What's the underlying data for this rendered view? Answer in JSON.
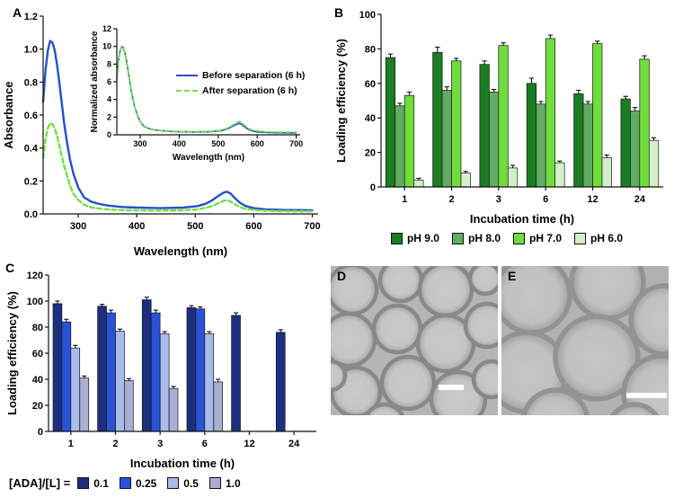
{
  "panels": {
    "a": {
      "label": "A"
    },
    "b": {
      "label": "B"
    },
    "c": {
      "label": "C",
      "legend_prefix": "[ADA]/[L] ="
    },
    "d": {
      "label": "D"
    },
    "e": {
      "label": "E"
    }
  },
  "chart_data": [
    {
      "id": "absorbance-spectra",
      "type": "line",
      "xlabel": "Wavelength (nm)",
      "ylabel": "Absorbance",
      "xlim": [
        240,
        710
      ],
      "ylim": [
        0,
        1.2
      ],
      "xticks": [
        300,
        400,
        500,
        600,
        700
      ],
      "yticks": [
        0,
        0.2,
        0.4,
        0.6,
        0.8,
        1.0,
        1.2
      ],
      "ytick_labels": [
        "0.0",
        "0.2",
        "0.4",
        "0.6",
        "0.8",
        "1.0",
        "1.2"
      ],
      "x": [
        240,
        244,
        248,
        252,
        256,
        260,
        264,
        268,
        272,
        276,
        281,
        286,
        292,
        300,
        310,
        322,
        336,
        352,
        375,
        400,
        440,
        480,
        505,
        520,
        530,
        540,
        548,
        554,
        560,
        568,
        576,
        586,
        600,
        620,
        650,
        700
      ],
      "series": [
        {
          "name": "Before separation (6 h)",
          "color": "#2351c9",
          "style": "solid",
          "y": [
            0.68,
            0.87,
            0.99,
            1.05,
            1.04,
            0.99,
            0.9,
            0.79,
            0.67,
            0.55,
            0.43,
            0.33,
            0.24,
            0.16,
            0.1,
            0.075,
            0.06,
            0.05,
            0.042,
            0.038,
            0.035,
            0.038,
            0.048,
            0.065,
            0.085,
            0.11,
            0.128,
            0.135,
            0.125,
            0.095,
            0.068,
            0.048,
            0.035,
            0.028,
            0.024,
            0.022
          ]
        },
        {
          "name": "After separation (6 h)",
          "color": "#76de4d",
          "style": "dashed",
          "y": [
            0.34,
            0.45,
            0.52,
            0.55,
            0.545,
            0.52,
            0.47,
            0.41,
            0.35,
            0.29,
            0.23,
            0.17,
            0.12,
            0.085,
            0.055,
            0.04,
            0.032,
            0.027,
            0.023,
            0.021,
            0.02,
            0.022,
            0.028,
            0.038,
            0.05,
            0.065,
            0.078,
            0.083,
            0.076,
            0.058,
            0.042,
            0.03,
            0.024,
            0.019,
            0.017,
            0.016
          ]
        }
      ]
    },
    {
      "id": "normalized-spectra-inset",
      "type": "line",
      "xlabel": "Wavelength (nm)",
      "ylabel": "Normalized absorbance",
      "xlim": [
        240,
        710
      ],
      "ylim": [
        0,
        12
      ],
      "xticks": [
        300,
        400,
        500,
        600,
        700
      ],
      "yticks": [
        0,
        2,
        4,
        6,
        8,
        10,
        12
      ],
      "x": [
        240,
        244,
        248,
        252,
        256,
        260,
        264,
        268,
        272,
        276,
        281,
        286,
        292,
        300,
        310,
        322,
        336,
        352,
        375,
        400,
        440,
        480,
        505,
        520,
        530,
        540,
        548,
        554,
        560,
        568,
        576,
        586,
        600,
        620,
        650,
        700
      ],
      "series": [
        {
          "name": "Before separation (6 h)",
          "color": "#2351c9",
          "style": "solid",
          "y": [
            6.5,
            8.3,
            9.4,
            10.0,
            9.9,
            9.4,
            8.6,
            7.5,
            6.4,
            5.2,
            4.1,
            3.1,
            2.3,
            1.5,
            0.95,
            0.71,
            0.57,
            0.48,
            0.4,
            0.36,
            0.33,
            0.36,
            0.46,
            0.62,
            0.81,
            1.05,
            1.22,
            1.29,
            1.19,
            0.9,
            0.65,
            0.46,
            0.33,
            0.27,
            0.23,
            0.21
          ]
        },
        {
          "name": "After separation (6 h)",
          "color": "#76de4d",
          "style": "dashed",
          "y": [
            6.2,
            8.2,
            9.5,
            10.0,
            9.9,
            9.5,
            8.5,
            7.5,
            6.4,
            5.3,
            4.2,
            3.1,
            2.2,
            1.5,
            1.0,
            0.73,
            0.58,
            0.49,
            0.42,
            0.38,
            0.36,
            0.4,
            0.51,
            0.69,
            0.91,
            1.18,
            1.42,
            1.51,
            1.38,
            1.05,
            0.76,
            0.55,
            0.44,
            0.35,
            0.31,
            0.29
          ]
        }
      ]
    },
    {
      "id": "ph-loading-efficiency",
      "type": "bar",
      "xlabel": "Incubation time (h)",
      "ylabel": "Loading efficiency (%)",
      "categories": [
        "1",
        "2",
        "3",
        "6",
        "12",
        "24"
      ],
      "ylim": [
        0,
        100
      ],
      "yticks": [
        0,
        20,
        40,
        60,
        80,
        100
      ],
      "series": [
        {
          "name": "pH 9.0",
          "color": "#1a7d21",
          "values": [
            75,
            78,
            71,
            60,
            54,
            51
          ],
          "errors": [
            2,
            3,
            2,
            3,
            2,
            1.5
          ]
        },
        {
          "name": "pH 8.0",
          "color": "#61ad63",
          "values": [
            47,
            56,
            55,
            48,
            48,
            44
          ],
          "errors": [
            1.5,
            2,
            1.5,
            1.5,
            1.5,
            2
          ]
        },
        {
          "name": "pH 7.0",
          "color": "#70dd3c",
          "values": [
            53,
            73,
            82,
            86,
            83,
            74
          ],
          "errors": [
            2,
            1.5,
            1.5,
            2,
            1.5,
            2
          ]
        },
        {
          "name": "pH 6.0",
          "color": "#d4efcb",
          "values": [
            4,
            8,
            11,
            14,
            17,
            27
          ],
          "errors": [
            1,
            1,
            1.5,
            1,
            1.5,
            1.5
          ]
        }
      ]
    },
    {
      "id": "ada-loading-efficiency",
      "type": "bar",
      "xlabel": "Incubation time (h)",
      "ylabel": "Loading efficiency (%)",
      "categories": [
        "1",
        "2",
        "3",
        "6",
        "12",
        "24"
      ],
      "ylim": [
        0,
        120
      ],
      "yticks": [
        0,
        20,
        40,
        60,
        80,
        100,
        120
      ],
      "series": [
        {
          "name": "0.1",
          "color": "#1b2f7e",
          "values": [
            98,
            96,
            101,
            95,
            89,
            76
          ],
          "errors": [
            2,
            1.5,
            2,
            1.5,
            2,
            2
          ]
        },
        {
          "name": "0.25",
          "color": "#2a52d9",
          "values": [
            84,
            91,
            91,
            94,
            null,
            null
          ],
          "errors": [
            2,
            2,
            2,
            1.5,
            null,
            null
          ]
        },
        {
          "name": "0.5",
          "color": "#a9bbea",
          "values": [
            64,
            77,
            75,
            75,
            null,
            null
          ],
          "errors": [
            2,
            1.5,
            1.5,
            1.5,
            null,
            null
          ]
        },
        {
          "name": "1.0",
          "color": "#a9aed2",
          "values": [
            41,
            39,
            33,
            38,
            null,
            null
          ],
          "errors": [
            1.5,
            1.5,
            1.5,
            2,
            null,
            null
          ]
        }
      ]
    }
  ],
  "micrographs": [
    {
      "label": "D",
      "bg": "#b5b5b3",
      "fill": "#c6c6c4",
      "inner": "#cbcbc9",
      "edge": "#a4a4a2",
      "ring": "#858583",
      "ring_w": 4.5,
      "circles": [
        [
          24,
          26,
          27
        ],
        [
          78,
          16,
          23
        ],
        [
          128,
          26,
          29
        ],
        [
          172,
          14,
          17
        ],
        [
          20,
          82,
          29
        ],
        [
          74,
          70,
          26
        ],
        [
          128,
          86,
          31
        ],
        [
          174,
          66,
          24
        ],
        [
          28,
          140,
          27
        ],
        [
          86,
          130,
          29
        ],
        [
          142,
          148,
          30
        ],
        [
          179,
          126,
          20
        ],
        [
          60,
          176,
          22
        ],
        [
          0,
          122,
          16
        ]
      ],
      "scalebar": [
        120,
        132,
        28,
        6
      ]
    },
    {
      "label": "E",
      "bg": "#b1b1af",
      "fill": "#c1c1bf",
      "inner": "#c7c7c5",
      "edge": "#9f9f9d",
      "ring": "#90908e",
      "ring_w": 5.5,
      "circles": [
        [
          34,
          32,
          42
        ],
        [
          118,
          18,
          40
        ],
        [
          182,
          60,
          38
        ],
        [
          28,
          118,
          44
        ],
        [
          106,
          102,
          46
        ],
        [
          178,
          142,
          42
        ],
        [
          60,
          174,
          36
        ],
        [
          148,
          184,
          30
        ]
      ],
      "scalebar": [
        139,
        141,
        45,
        6
      ]
    }
  ]
}
